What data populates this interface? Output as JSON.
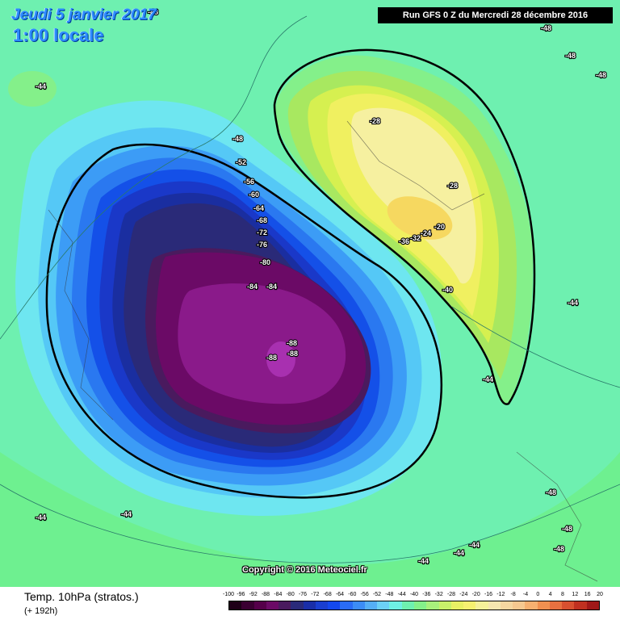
{
  "header": {
    "date": "Jeudi 5 janvier 2017",
    "time": "1:00 locale",
    "run": "Run GFS 0 Z du Mercredi 28 décembre 2016"
  },
  "copyright": "Copyright © 2016 Meteociel.fr",
  "footer": {
    "field": "Temp. 10hPa (stratos.)",
    "lead": "(+ 192h)"
  },
  "legend": {
    "labels": [
      "-100",
      "-96",
      "-92",
      "-88",
      "-84",
      "-80",
      "-76",
      "-72",
      "-68",
      "-64",
      "-60",
      "-56",
      "-52",
      "-48",
      "-44",
      "-40",
      "-36",
      "-32",
      "-28",
      "-24",
      "-20",
      "-16",
      "-12",
      "-8",
      "-4",
      "0",
      "4",
      "8",
      "12",
      "16",
      "20"
    ],
    "colors": [
      "#1e0018",
      "#3a0032",
      "#55004a",
      "#6b0a66",
      "#4a1a5e",
      "#2a2a7a",
      "#1a2ea8",
      "#1a3ed0",
      "#1448ee",
      "#2a6cf6",
      "#3c8cf6",
      "#55aef6",
      "#6cd0f6",
      "#6ef0e4",
      "#6ef0b0",
      "#84f08a",
      "#a8f07c",
      "#c8f06a",
      "#e8f064",
      "#f6f070",
      "#f6f09a",
      "#f6e6b0",
      "#f6d6a0",
      "#f6c890",
      "#f6b070",
      "#f09050",
      "#e87040",
      "#d85030",
      "#c03020",
      "#a01818"
    ]
  },
  "contour_labels": [
    {
      "text": "-48"
    },
    {
      "text": "-44"
    },
    {
      "text": "-48"
    },
    {
      "text": "-48"
    },
    {
      "text": "-48"
    },
    {
      "text": "-44"
    },
    {
      "text": "-48"
    },
    {
      "text": "-52"
    },
    {
      "text": "-56"
    },
    {
      "text": "-60"
    },
    {
      "text": "-64"
    },
    {
      "text": "-68"
    },
    {
      "text": "-72"
    },
    {
      "text": "-76"
    },
    {
      "text": "-80"
    },
    {
      "text": "-84"
    },
    {
      "text": "-84"
    },
    {
      "text": "-88"
    },
    {
      "text": "-88"
    },
    {
      "text": "-88"
    },
    {
      "text": "-28"
    },
    {
      "text": "-28"
    },
    {
      "text": "-24"
    },
    {
      "text": "-20"
    },
    {
      "text": "-32"
    },
    {
      "text": "-36"
    },
    {
      "text": "-40"
    },
    {
      "text": "-44"
    },
    {
      "text": "-44"
    },
    {
      "text": "-44"
    },
    {
      "text": "-44"
    },
    {
      "text": "-44"
    },
    {
      "text": "-48"
    },
    {
      "text": "-48"
    },
    {
      "text": "-48"
    },
    {
      "text": "-44"
    }
  ]
}
